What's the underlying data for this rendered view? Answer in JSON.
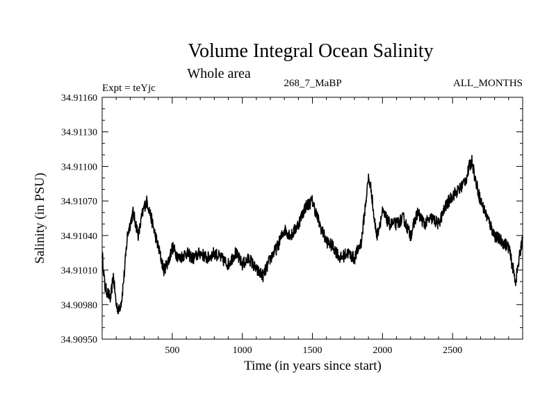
{
  "chart_data": {
    "type": "line",
    "title": "Volume Integral Ocean Salinity",
    "subtitle": "Whole area",
    "header_left": "Expt = teYjc",
    "header_center": "268_7_MaBP",
    "header_right": "ALL_MONTHS",
    "xlabel": "Time (in years since start)",
    "ylabel": "Salinity (in PSU)",
    "xlim": [
      0,
      3000
    ],
    "ylim": [
      34.9095,
      34.9116
    ],
    "x_ticks": [
      500,
      1000,
      1500,
      2000,
      2500
    ],
    "x_tick_labels": [
      "500",
      "1000",
      "1500",
      "2000",
      "2500"
    ],
    "y_ticks": [
      34.9095,
      34.9098,
      34.9101,
      34.9104,
      34.9107,
      34.911,
      34.9113,
      34.9116
    ],
    "y_tick_labels": [
      "34.90950",
      "34.90980",
      "34.91010",
      "34.91040",
      "34.91070",
      "34.91100",
      "34.91130",
      "34.91160"
    ],
    "series": [
      {
        "name": "Salinity",
        "color": "#000000",
        "x": [
          0,
          20,
          40,
          60,
          80,
          100,
          120,
          140,
          160,
          180,
          200,
          220,
          240,
          260,
          280,
          300,
          320,
          340,
          360,
          380,
          400,
          420,
          440,
          460,
          480,
          500,
          550,
          600,
          650,
          700,
          750,
          800,
          850,
          900,
          950,
          1000,
          1050,
          1100,
          1150,
          1200,
          1250,
          1300,
          1350,
          1400,
          1450,
          1500,
          1550,
          1600,
          1650,
          1700,
          1750,
          1800,
          1850,
          1900,
          1920,
          1940,
          1960,
          1980,
          2000,
          2050,
          2100,
          2150,
          2200,
          2250,
          2300,
          2350,
          2400,
          2450,
          2500,
          2550,
          2600,
          2620,
          2640,
          2660,
          2680,
          2700,
          2750,
          2800,
          2850,
          2900,
          2950,
          2970,
          3000
        ],
        "y": [
          34.91025,
          34.90995,
          34.9099,
          34.90985,
          34.91005,
          34.9098,
          34.90975,
          34.90985,
          34.9101,
          34.9104,
          34.9105,
          34.9106,
          34.9105,
          34.9104,
          34.91055,
          34.91065,
          34.9107,
          34.9106,
          34.9105,
          34.9104,
          34.9103,
          34.9102,
          34.9101,
          34.91015,
          34.9102,
          34.9103,
          34.9102,
          34.91025,
          34.9102,
          34.91025,
          34.9102,
          34.91025,
          34.9102,
          34.91015,
          34.91025,
          34.91015,
          34.9102,
          34.9101,
          34.91005,
          34.9102,
          34.9103,
          34.91045,
          34.9104,
          34.9105,
          34.91065,
          34.9107,
          34.9105,
          34.91035,
          34.9103,
          34.9102,
          34.91025,
          34.9102,
          34.91035,
          34.9109,
          34.9108,
          34.91055,
          34.9104,
          34.9105,
          34.9106,
          34.9105,
          34.9105,
          34.91055,
          34.9104,
          34.9106,
          34.9105,
          34.91055,
          34.9105,
          34.91065,
          34.91075,
          34.9108,
          34.9109,
          34.911,
          34.91105,
          34.9109,
          34.9108,
          34.9107,
          34.91055,
          34.9104,
          34.91035,
          34.9103,
          34.91,
          34.91015,
          34.9104
        ]
      }
    ]
  }
}
